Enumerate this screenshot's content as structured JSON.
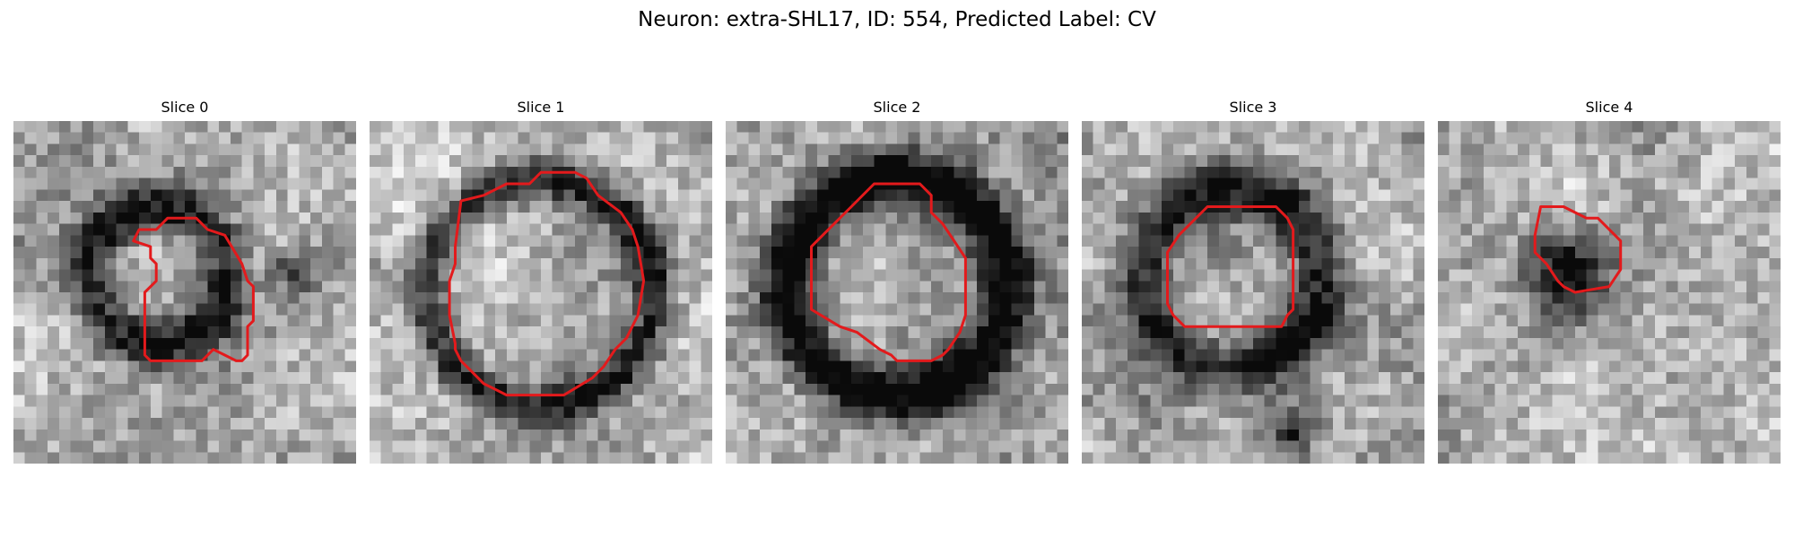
{
  "figure": {
    "title": "Neuron: extra-SHL17, ID: 554, Predicted Label: CV"
  },
  "colors": {
    "background": "#ffffff",
    "contour": "#e31a1c",
    "colormap": "grayscale"
  },
  "panels": [
    {
      "title": "Slice 0"
    },
    {
      "title": "Slice 1"
    },
    {
      "title": "Slice 2"
    },
    {
      "title": "Slice 3"
    },
    {
      "title": "Slice 4"
    }
  ]
}
